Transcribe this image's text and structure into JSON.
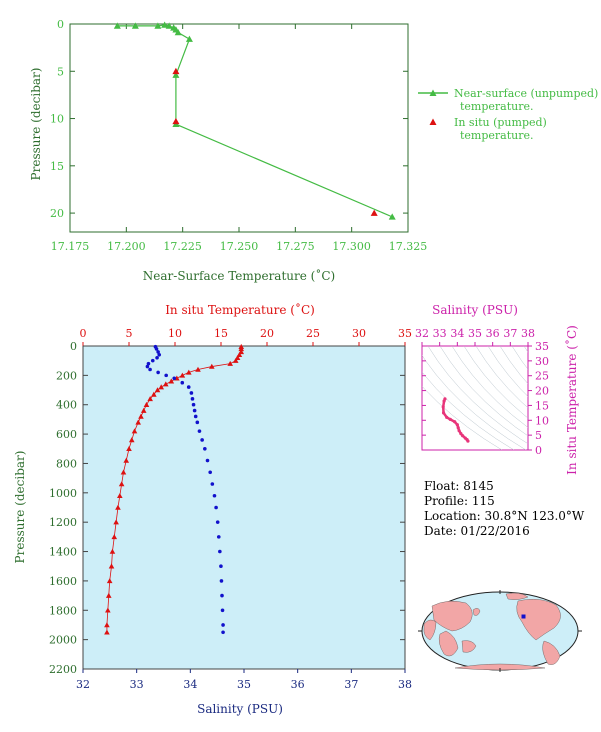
{
  "colors": {
    "green": "#44bb44",
    "axis_green": "#2e6e2e",
    "red": "#dd1111",
    "blue": "#1111cc",
    "navy": "#1a2a80",
    "magenta": "#cc22aa",
    "pink": "#e8357a",
    "panel_bg": "#cdeef8",
    "land": "#f2a6a6"
  },
  "float_info": {
    "float": "Float:  8145",
    "profile": "Profile:  115",
    "location": "Location:  30.8°N  123.0°W",
    "date": "Date:  01/22/2016"
  },
  "chart_data": [
    {
      "id": "near-surface",
      "type": "line",
      "xlabel": "Near-Surface Temperature (˚C)",
      "ylabel": "Pressure (decibar)",
      "xlim": [
        17.175,
        17.325
      ],
      "ylim": [
        0,
        22
      ],
      "y_inverted": true,
      "x_ticks": [
        "17.175",
        "17.200",
        "17.225",
        "17.250",
        "17.275",
        "17.300",
        "17.325"
      ],
      "y_ticks": [
        "0",
        "5",
        "10",
        "15",
        "20"
      ],
      "legend": [
        "Near-surface (unpumped)",
        "temperature.",
        "In situ (pumped)",
        "temperature."
      ],
      "series": [
        {
          "name": "Near-surface (unpumped) temperature.",
          "marker": "triangle",
          "points": [
            [
              17.196,
              0.2
            ],
            [
              17.204,
              0.2
            ],
            [
              17.214,
              0.2
            ],
            [
              17.217,
              0.1
            ],
            [
              17.219,
              0.2
            ],
            [
              17.221,
              0.4
            ],
            [
              17.222,
              0.6
            ],
            [
              17.223,
              0.9
            ],
            [
              17.228,
              1.6
            ],
            [
              17.222,
              5.4
            ],
            [
              17.222,
              10.6
            ],
            [
              17.318,
              20.4
            ]
          ]
        },
        {
          "name": "In situ (pumped) temperature.",
          "marker": "triangle",
          "points": [
            [
              17.222,
              5.0
            ],
            [
              17.222,
              10.3
            ],
            [
              17.31,
              20.0
            ]
          ]
        }
      ]
    },
    {
      "id": "profile",
      "type": "scatter",
      "xlabel_top": "In situ Temperature (˚C)",
      "xlabel_bottom": "Salinity (PSU)",
      "ylabel": "Pressure (decibar)",
      "temp_lim": [
        0,
        35
      ],
      "sal_lim": [
        32,
        38
      ],
      "ylim": [
        0,
        2200
      ],
      "y_inverted": true,
      "temp_ticks": [
        "0",
        "5",
        "10",
        "15",
        "20",
        "25",
        "30",
        "35"
      ],
      "sal_ticks": [
        "32",
        "33",
        "34",
        "35",
        "36",
        "37",
        "38"
      ],
      "y_ticks": [
        "0",
        "200",
        "400",
        "600",
        "800",
        "1000",
        "1200",
        "1400",
        "1600",
        "1800",
        "2000",
        "2200"
      ],
      "temperature": [
        [
          17.2,
          5
        ],
        [
          17.2,
          20
        ],
        [
          17.2,
          40
        ],
        [
          17.0,
          60
        ],
        [
          16.8,
          80
        ],
        [
          16.6,
          100
        ],
        [
          16.0,
          120
        ],
        [
          14.0,
          140
        ],
        [
          12.5,
          160
        ],
        [
          11.5,
          180
        ],
        [
          10.8,
          200
        ],
        [
          10.2,
          220
        ],
        [
          9.6,
          240
        ],
        [
          9.0,
          260
        ],
        [
          8.5,
          280
        ],
        [
          8.1,
          300
        ],
        [
          7.7,
          330
        ],
        [
          7.3,
          360
        ],
        [
          6.9,
          400
        ],
        [
          6.6,
          440
        ],
        [
          6.3,
          480
        ],
        [
          6.0,
          520
        ],
        [
          5.6,
          580
        ],
        [
          5.3,
          640
        ],
        [
          5.0,
          700
        ],
        [
          4.7,
          780
        ],
        [
          4.4,
          860
        ],
        [
          4.2,
          940
        ],
        [
          4.0,
          1020
        ],
        [
          3.8,
          1100
        ],
        [
          3.6,
          1200
        ],
        [
          3.4,
          1300
        ],
        [
          3.2,
          1400
        ],
        [
          3.1,
          1500
        ],
        [
          2.9,
          1600
        ],
        [
          2.8,
          1700
        ],
        [
          2.7,
          1800
        ],
        [
          2.6,
          1900
        ],
        [
          2.6,
          1950
        ]
      ],
      "salinity": [
        [
          33.35,
          5
        ],
        [
          33.37,
          20
        ],
        [
          33.4,
          40
        ],
        [
          33.42,
          60
        ],
        [
          33.38,
          80
        ],
        [
          33.3,
          100
        ],
        [
          33.22,
          120
        ],
        [
          33.2,
          140
        ],
        [
          33.25,
          160
        ],
        [
          33.4,
          180
        ],
        [
          33.55,
          200
        ],
        [
          33.7,
          220
        ],
        [
          33.85,
          250
        ],
        [
          33.97,
          280
        ],
        [
          34.02,
          320
        ],
        [
          34.04,
          360
        ],
        [
          34.06,
          400
        ],
        [
          34.08,
          440
        ],
        [
          34.1,
          480
        ],
        [
          34.13,
          520
        ],
        [
          34.17,
          580
        ],
        [
          34.22,
          640
        ],
        [
          34.27,
          700
        ],
        [
          34.32,
          780
        ],
        [
          34.37,
          860
        ],
        [
          34.41,
          940
        ],
        [
          34.45,
          1020
        ],
        [
          34.48,
          1100
        ],
        [
          34.51,
          1200
        ],
        [
          34.53,
          1300
        ],
        [
          34.55,
          1400
        ],
        [
          34.57,
          1500
        ],
        [
          34.58,
          1600
        ],
        [
          34.59,
          1700
        ],
        [
          34.6,
          1800
        ],
        [
          34.61,
          1900
        ],
        [
          34.61,
          1950
        ]
      ]
    },
    {
      "id": "ts-diagram",
      "type": "line",
      "xlabel": "Salinity (PSU)",
      "ylabel": "In situ Temperature (˚C)",
      "xlim": [
        32,
        38
      ],
      "ylim": [
        0,
        35
      ],
      "x_ticks": [
        "32",
        "33",
        "34",
        "35",
        "36",
        "37",
        "38"
      ],
      "y_ticks": [
        "0",
        "5",
        "10",
        "15",
        "20",
        "25",
        "30",
        "35"
      ],
      "points": [
        [
          33.3,
          17.2
        ],
        [
          33.25,
          16.5
        ],
        [
          33.2,
          14.5
        ],
        [
          33.22,
          12.5
        ],
        [
          33.4,
          11.0
        ],
        [
          33.6,
          10.3
        ],
        [
          33.85,
          9.5
        ],
        [
          34.0,
          8.5
        ],
        [
          34.05,
          7.5
        ],
        [
          34.1,
          6.5
        ],
        [
          34.2,
          5.5
        ],
        [
          34.3,
          4.8
        ],
        [
          34.45,
          4.0
        ],
        [
          34.55,
          3.5
        ],
        [
          34.6,
          3.0
        ]
      ]
    }
  ]
}
